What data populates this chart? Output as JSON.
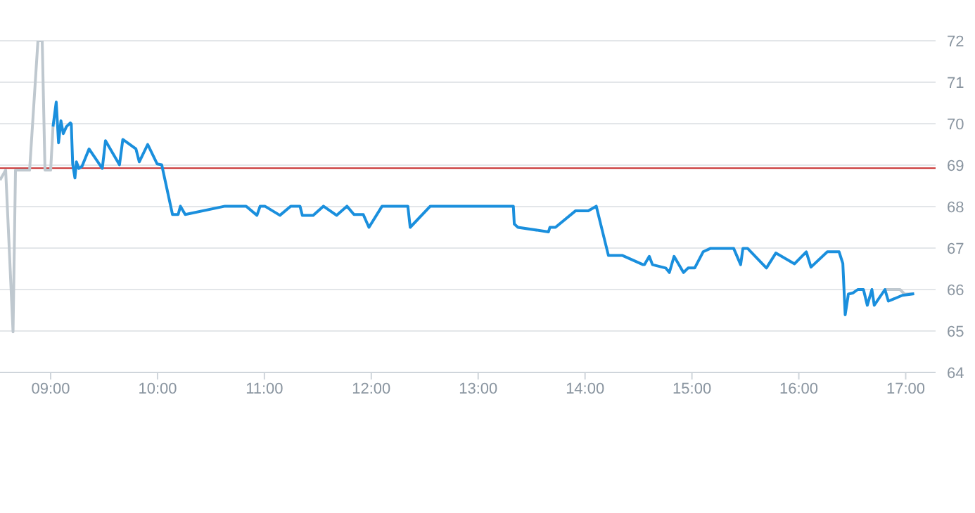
{
  "chart_data": {
    "type": "line",
    "xlim": [
      8.526,
      17.28
    ],
    "ylim": [
      64,
      72
    ],
    "xticks": [
      {
        "value": 9,
        "label": "09:00"
      },
      {
        "value": 10,
        "label": "10:00"
      },
      {
        "value": 11,
        "label": "11:00"
      },
      {
        "value": 12,
        "label": "12:00"
      },
      {
        "value": 13,
        "label": "13:00"
      },
      {
        "value": 14,
        "label": "14:00"
      },
      {
        "value": 15,
        "label": "15:00"
      },
      {
        "value": 16,
        "label": "16:00"
      },
      {
        "value": 17,
        "label": "17:00"
      }
    ],
    "yticks": [
      64,
      65,
      66,
      67,
      68,
      69,
      70,
      71,
      72
    ],
    "grid": "y",
    "marker": "none",
    "line_style": "solid",
    "ref_lines": [
      {
        "axis": "y",
        "value": 68.93,
        "color": "#c62828"
      }
    ],
    "series": [
      {
        "color": "#bfc8cf",
        "x": [
          8.526,
          8.579,
          8.648,
          8.671,
          8.803,
          8.881,
          8.921,
          8.947,
          9.0,
          9.022,
          13.0,
          16.806,
          16.947,
          16.99,
          17.079
        ],
        "values": [
          68.64,
          68.88,
          64.98,
          68.88,
          68.88,
          72,
          72,
          68.88,
          68.88,
          69.93,
          null,
          66.0,
          66.0,
          65.89,
          65.9
        ]
      },
      {
        "color": "#1a8fdd",
        "x": [
          9.022,
          9.052,
          9.074,
          9.096,
          9.118,
          9.148,
          9.184,
          9.193,
          9.206,
          9.227,
          9.241,
          9.263,
          9.293,
          9.359,
          9.483,
          9.513,
          9.644,
          9.675,
          9.798,
          9.829,
          9.908,
          9.996,
          10.039,
          10.14,
          10.193,
          10.214,
          10.259,
          10.631,
          10.829,
          10.93,
          10.96,
          11.004,
          11.145,
          11.246,
          11.333,
          11.355,
          11.456,
          11.552,
          11.675,
          11.772,
          11.838,
          11.925,
          11.978,
          12.101,
          12.342,
          12.364,
          12.552,
          13.329,
          13.338,
          13.372,
          13.658,
          13.671,
          13.723,
          13.912,
          14.03,
          14.105,
          14.219,
          14.351,
          14.543,
          14.556,
          14.601,
          14.631,
          14.754,
          14.789,
          14.833,
          14.921,
          14.964,
          15.026,
          15.105,
          15.171,
          15.391,
          15.456,
          15.477,
          15.522,
          15.697,
          15.785,
          15.96,
          16.07,
          16.114,
          16.267,
          16.377,
          16.412,
          16.434,
          16.464,
          16.509,
          16.552,
          16.605,
          16.641,
          16.684,
          16.706,
          16.806,
          16.838,
          16.969,
          17.079
        ],
        "values": [
          69.93,
          70.52,
          69.54,
          70.07,
          69.76,
          69.93,
          70.02,
          69.99,
          69.03,
          68.69,
          69.08,
          68.92,
          68.97,
          69.39,
          68.92,
          69.59,
          69.01,
          69.62,
          69.39,
          69.08,
          69.5,
          69.03,
          69.01,
          67.81,
          67.81,
          68.01,
          67.81,
          68.01,
          68.01,
          67.79,
          68.01,
          68.01,
          67.79,
          68.01,
          68.01,
          67.79,
          67.79,
          68.01,
          67.79,
          68.01,
          67.81,
          67.81,
          67.5,
          68.01,
          68.01,
          67.5,
          68.01,
          68.01,
          67.58,
          67.5,
          67.39,
          67.5,
          67.5,
          67.9,
          67.9,
          68.01,
          66.82,
          66.82,
          66.6,
          66.6,
          66.8,
          66.6,
          66.52,
          66.41,
          66.8,
          66.41,
          66.52,
          66.52,
          66.91,
          66.99,
          66.99,
          66.6,
          66.99,
          66.99,
          66.52,
          66.88,
          66.62,
          66.91,
          66.54,
          66.91,
          66.91,
          66.63,
          65.39,
          65.89,
          65.92,
          66.0,
          66.0,
          65.62,
          66.0,
          65.62,
          66.0,
          65.72,
          65.86,
          65.9
        ]
      }
    ]
  }
}
